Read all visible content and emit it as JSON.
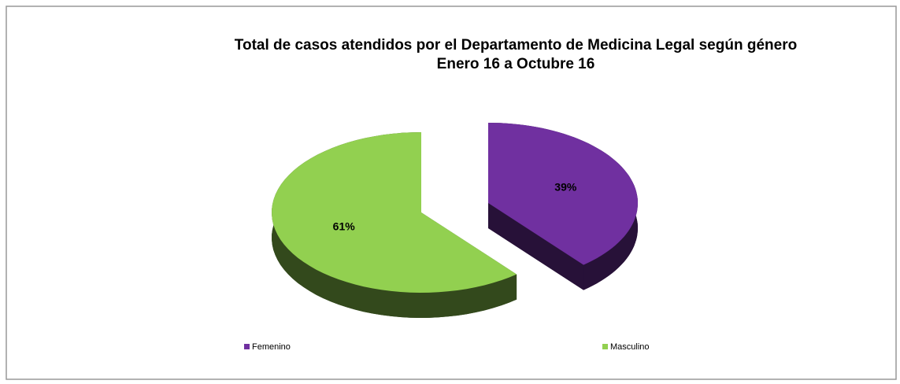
{
  "chart_data": {
    "type": "pie",
    "title": "Total de casos atendidos por el Departamento de Medicina Legal  según género",
    "subtitle": "Enero  16 a  Octubre 16",
    "categories": [
      "Femenino",
      "Masculino"
    ],
    "values": [
      39,
      61
    ],
    "value_labels": [
      "39%",
      "61%"
    ],
    "colors": [
      "#7030a0",
      "#92d050"
    ]
  }
}
